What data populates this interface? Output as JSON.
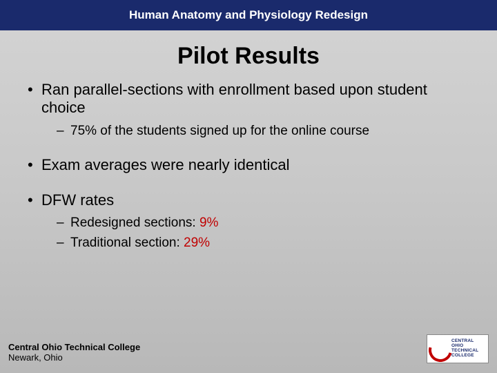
{
  "header": {
    "title": "Human Anatomy and Physiology Redesign"
  },
  "slide": {
    "title": "Pilot Results"
  },
  "bullets": [
    {
      "text": "Ran parallel-sections with enrollment based upon student choice",
      "subs": [
        {
          "text": "75% of the students signed up for the online course",
          "highlight": false
        }
      ]
    },
    {
      "text": "Exam averages were nearly identical",
      "subs": []
    },
    {
      "text": "DFW rates",
      "subs": [
        {
          "prefix": "Redesigned sections:  ",
          "value": "9%",
          "highlight": true
        },
        {
          "prefix": "Traditional section:  ",
          "value": "29%",
          "highlight": true
        }
      ]
    }
  ],
  "footer": {
    "college": "Central Ohio Technical College",
    "location": "Newark, Ohio",
    "logo_lines": [
      "CENTRAL",
      "OHIO",
      "TECHNICAL",
      "COLLEGE"
    ]
  },
  "colors": {
    "band": "#1a2a6c",
    "highlight": "#c00000",
    "bg_top": "#d4d4d4",
    "bg_bottom": "#b8b8b8"
  }
}
